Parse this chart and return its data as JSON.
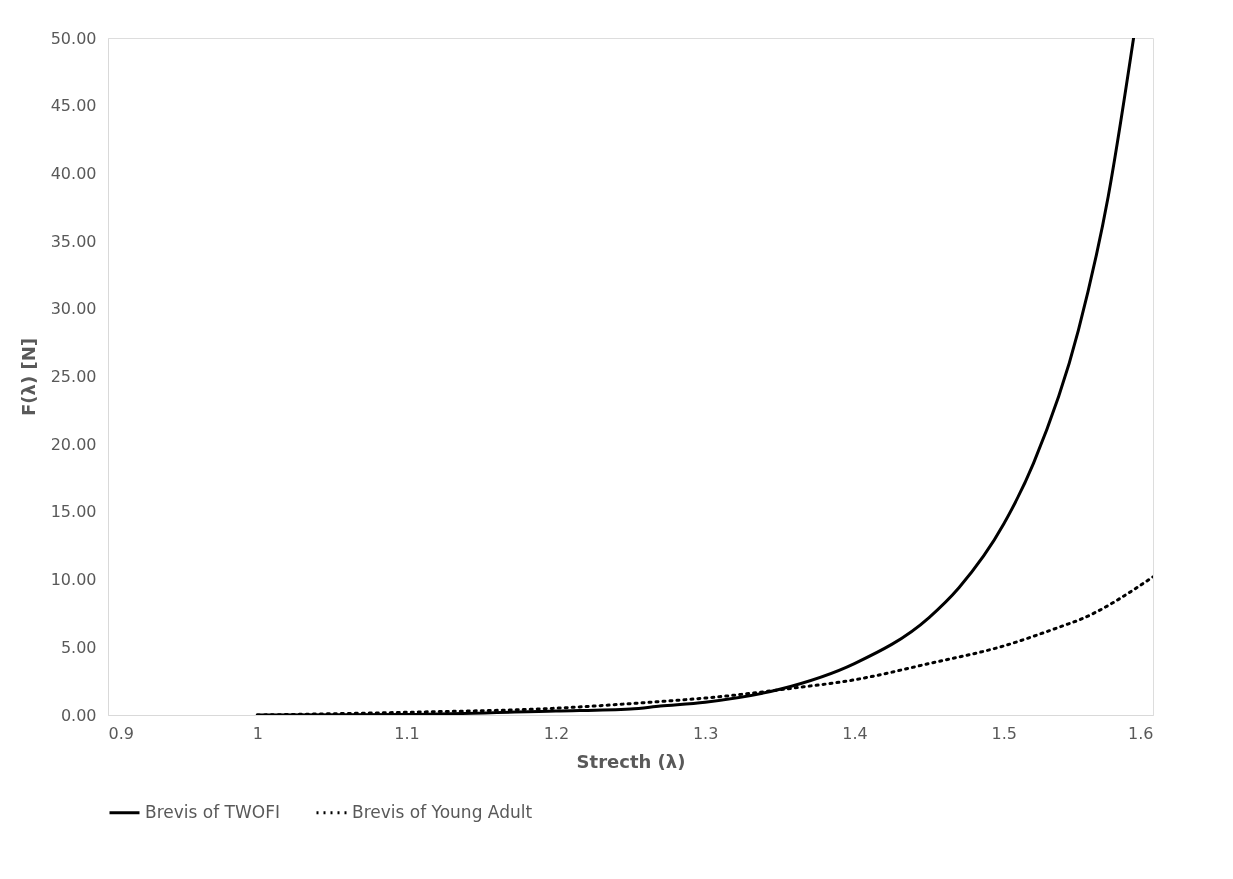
{
  "chart_data": {
    "type": "line",
    "xlabel": "Strecth (λ)",
    "ylabel": "F(λ)  [N]",
    "xlim": [
      0.9,
      1.6
    ],
    "xticks": [
      0.9,
      1,
      1.1,
      1.2,
      1.3,
      1.4,
      1.5,
      1.6
    ],
    "ylim": [
      0,
      50
    ],
    "yticks": [
      {
        "value": 0,
        "label": "0.00"
      },
      {
        "value": 5,
        "label": "5.00"
      },
      {
        "value": 10,
        "label": "10.00"
      },
      {
        "value": 15,
        "label": "15.00"
      },
      {
        "value": 20,
        "label": "20.00"
      },
      {
        "value": 25,
        "label": "25.00"
      },
      {
        "value": 30,
        "label": "30.00"
      },
      {
        "value": 35,
        "label": "35.00"
      },
      {
        "value": 40,
        "label": "40.00"
      },
      {
        "value": 45,
        "label": "45.00"
      },
      {
        "value": 50,
        "label": "50.00"
      }
    ],
    "grid": false,
    "legend": "bottom",
    "marker": "none",
    "series": [
      {
        "name": "Brevis of TWOFI",
        "color": "#000000",
        "line_style": "solid",
        "x": [
          1,
          1.1,
          1.2,
          1.25,
          1.27,
          1.3,
          1.35,
          1.4,
          1.45,
          1.47,
          1.5,
          1.52,
          1.55,
          1.57,
          1.587
        ],
        "values": [
          0,
          0.04,
          0.3,
          0.45,
          0.66,
          0.95,
          1.9,
          3.8,
          7.2,
          9.4,
          14.1,
          18.6,
          28.4,
          38.3,
          50
        ]
      },
      {
        "name": "Brevis of Young Adult",
        "color": "#000000",
        "line_style": "dotted",
        "x": [
          1,
          1.1,
          1.2,
          1.27,
          1.3,
          1.36,
          1.4,
          1.45,
          1.5,
          1.54,
          1.55,
          1.6
        ],
        "values": [
          0,
          0.2,
          0.5,
          1.0,
          1.25,
          2.0,
          2.6,
          3.8,
          5.1,
          6.6,
          7.0,
          10.2
        ]
      }
    ]
  }
}
